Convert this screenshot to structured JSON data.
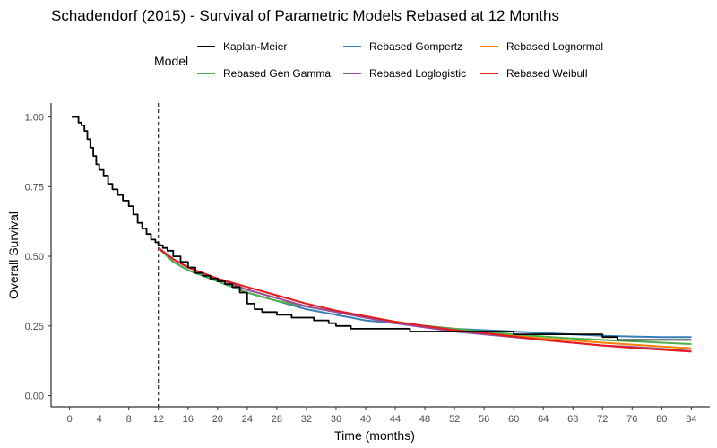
{
  "chart_data": {
    "type": "line",
    "title": "Schadendorf (2015) - Survival of Parametric Models Rebased at 12 Months",
    "xlabel": "Time (months)",
    "ylabel": "Overall Survival",
    "xlim": [
      -2.5,
      86.5
    ],
    "ylim": [
      -0.04,
      1.05
    ],
    "x_ticks": [
      0,
      4,
      8,
      12,
      16,
      20,
      24,
      28,
      32,
      36,
      40,
      44,
      48,
      52,
      56,
      60,
      64,
      68,
      72,
      76,
      80,
      84
    ],
    "x_tick_labels": [
      "0",
      "4",
      "8",
      "12",
      "16",
      "20",
      "24",
      "28",
      "32",
      "36",
      "40",
      "44",
      "48",
      "52",
      "56",
      "60",
      "64",
      "68",
      "72",
      "76",
      "80",
      "84"
    ],
    "y_ticks": [
      0,
      0.25,
      0.5,
      0.75,
      1.0
    ],
    "y_tick_labels": [
      "0.00",
      "0.25",
      "0.50",
      "0.75",
      "1.00"
    ],
    "grid": false,
    "legend": {
      "title": "Model",
      "position": "top"
    },
    "reference_line": {
      "x": 12,
      "style": "dashed",
      "color": "#000000"
    },
    "series": [
      {
        "name": "Kaplan-Meier",
        "color": "#000000",
        "step": true,
        "points": [
          [
            0.3,
            1.0
          ],
          [
            0.9,
            1.0
          ],
          [
            1.2,
            0.98
          ],
          [
            1.6,
            0.97
          ],
          [
            2.0,
            0.95
          ],
          [
            2.4,
            0.92
          ],
          [
            2.8,
            0.89
          ],
          [
            3.2,
            0.86
          ],
          [
            3.6,
            0.83
          ],
          [
            4.0,
            0.81
          ],
          [
            4.6,
            0.79
          ],
          [
            5.2,
            0.76
          ],
          [
            5.8,
            0.74
          ],
          [
            6.5,
            0.72
          ],
          [
            7.2,
            0.7
          ],
          [
            8.0,
            0.68
          ],
          [
            8.6,
            0.65
          ],
          [
            9.2,
            0.62
          ],
          [
            9.8,
            0.6
          ],
          [
            10.4,
            0.58
          ],
          [
            11.0,
            0.56
          ],
          [
            11.6,
            0.55
          ],
          [
            12.0,
            0.54
          ],
          [
            12.6,
            0.53
          ],
          [
            13.2,
            0.52
          ],
          [
            14.0,
            0.5
          ],
          [
            15.0,
            0.48
          ],
          [
            16.0,
            0.46
          ],
          [
            17.0,
            0.44
          ],
          [
            18.0,
            0.43
          ],
          [
            19.0,
            0.42
          ],
          [
            20.0,
            0.41
          ],
          [
            21.0,
            0.4
          ],
          [
            22.0,
            0.39
          ],
          [
            23.0,
            0.37
          ],
          [
            24.0,
            0.33
          ],
          [
            25.0,
            0.31
          ],
          [
            26.0,
            0.3
          ],
          [
            27.0,
            0.3
          ],
          [
            28.0,
            0.29
          ],
          [
            29.0,
            0.29
          ],
          [
            30.0,
            0.28
          ],
          [
            32.0,
            0.28
          ],
          [
            33.0,
            0.27
          ],
          [
            34.0,
            0.27
          ],
          [
            35.0,
            0.26
          ],
          [
            36.0,
            0.25
          ],
          [
            37.0,
            0.25
          ],
          [
            38.0,
            0.24
          ],
          [
            40.0,
            0.24
          ],
          [
            44.0,
            0.24
          ],
          [
            46.0,
            0.23
          ],
          [
            50.0,
            0.23
          ],
          [
            56.0,
            0.23
          ],
          [
            60.0,
            0.22
          ],
          [
            66.0,
            0.22
          ],
          [
            72.0,
            0.21
          ],
          [
            74.0,
            0.2
          ],
          [
            84.0,
            0.2
          ]
        ]
      },
      {
        "name": "Rebased Gompertz",
        "color": "#377eb8",
        "points": [
          [
            12,
            0.53
          ],
          [
            14,
            0.48
          ],
          [
            16,
            0.45
          ],
          [
            20,
            0.41
          ],
          [
            24,
            0.37
          ],
          [
            28,
            0.34
          ],
          [
            32,
            0.31
          ],
          [
            36,
            0.29
          ],
          [
            40,
            0.27
          ],
          [
            44,
            0.26
          ],
          [
            48,
            0.25
          ],
          [
            52,
            0.24
          ],
          [
            56,
            0.235
          ],
          [
            60,
            0.23
          ],
          [
            64,
            0.225
          ],
          [
            68,
            0.22
          ],
          [
            72,
            0.215
          ],
          [
            76,
            0.212
          ],
          [
            80,
            0.21
          ],
          [
            84,
            0.21
          ]
        ]
      },
      {
        "name": "Rebased Lognormal",
        "color": "#ff7f00",
        "points": [
          [
            12,
            0.53
          ],
          [
            14,
            0.49
          ],
          [
            16,
            0.46
          ],
          [
            20,
            0.42
          ],
          [
            24,
            0.38
          ],
          [
            28,
            0.35
          ],
          [
            32,
            0.32
          ],
          [
            36,
            0.3
          ],
          [
            40,
            0.28
          ],
          [
            44,
            0.26
          ],
          [
            48,
            0.25
          ],
          [
            52,
            0.24
          ],
          [
            56,
            0.225
          ],
          [
            60,
            0.215
          ],
          [
            64,
            0.205
          ],
          [
            68,
            0.198
          ],
          [
            72,
            0.19
          ],
          [
            76,
            0.183
          ],
          [
            80,
            0.176
          ],
          [
            84,
            0.17
          ]
        ]
      },
      {
        "name": "Rebased Gen Gamma",
        "color": "#4daf4a",
        "points": [
          [
            12,
            0.53
          ],
          [
            14,
            0.48
          ],
          [
            16,
            0.45
          ],
          [
            20,
            0.41
          ],
          [
            24,
            0.37
          ],
          [
            28,
            0.34
          ],
          [
            32,
            0.32
          ],
          [
            36,
            0.3
          ],
          [
            40,
            0.28
          ],
          [
            44,
            0.265
          ],
          [
            48,
            0.25
          ],
          [
            52,
            0.24
          ],
          [
            56,
            0.23
          ],
          [
            60,
            0.22
          ],
          [
            64,
            0.212
          ],
          [
            68,
            0.205
          ],
          [
            72,
            0.2
          ],
          [
            76,
            0.195
          ],
          [
            80,
            0.19
          ],
          [
            84,
            0.185
          ]
        ]
      },
      {
        "name": "Rebased Loglogistic",
        "color": "#984ea3",
        "points": [
          [
            12,
            0.53
          ],
          [
            14,
            0.49
          ],
          [
            16,
            0.46
          ],
          [
            20,
            0.42
          ],
          [
            24,
            0.38
          ],
          [
            28,
            0.35
          ],
          [
            32,
            0.32
          ],
          [
            36,
            0.3
          ],
          [
            40,
            0.28
          ],
          [
            44,
            0.26
          ],
          [
            48,
            0.245
          ],
          [
            52,
            0.23
          ],
          [
            56,
            0.22
          ],
          [
            60,
            0.21
          ],
          [
            64,
            0.2
          ],
          [
            68,
            0.19
          ],
          [
            72,
            0.18
          ],
          [
            76,
            0.175
          ],
          [
            80,
            0.168
          ],
          [
            84,
            0.16
          ]
        ]
      },
      {
        "name": "Rebased Weibull",
        "color": "#e41a1c",
        "points": [
          [
            12,
            0.53
          ],
          [
            14,
            0.49
          ],
          [
            16,
            0.46
          ],
          [
            20,
            0.42
          ],
          [
            24,
            0.39
          ],
          [
            28,
            0.36
          ],
          [
            32,
            0.33
          ],
          [
            36,
            0.305
          ],
          [
            40,
            0.285
          ],
          [
            44,
            0.265
          ],
          [
            48,
            0.25
          ],
          [
            52,
            0.235
          ],
          [
            56,
            0.225
          ],
          [
            60,
            0.212
          ],
          [
            64,
            0.2
          ],
          [
            68,
            0.19
          ],
          [
            72,
            0.18
          ],
          [
            76,
            0.172
          ],
          [
            80,
            0.165
          ],
          [
            84,
            0.158
          ]
        ]
      }
    ]
  },
  "legend_layout": [
    {
      "series": "Kaplan-Meier",
      "row": 0,
      "col": 0
    },
    {
      "series": "Rebased Gompertz",
      "row": 0,
      "col": 1
    },
    {
      "series": "Rebased Lognormal",
      "row": 0,
      "col": 2
    },
    {
      "series": "Rebased Gen Gamma",
      "row": 1,
      "col": 0
    },
    {
      "series": "Rebased Loglogistic",
      "row": 1,
      "col": 1
    },
    {
      "series": "Rebased Weibull",
      "row": 1,
      "col": 2
    }
  ]
}
